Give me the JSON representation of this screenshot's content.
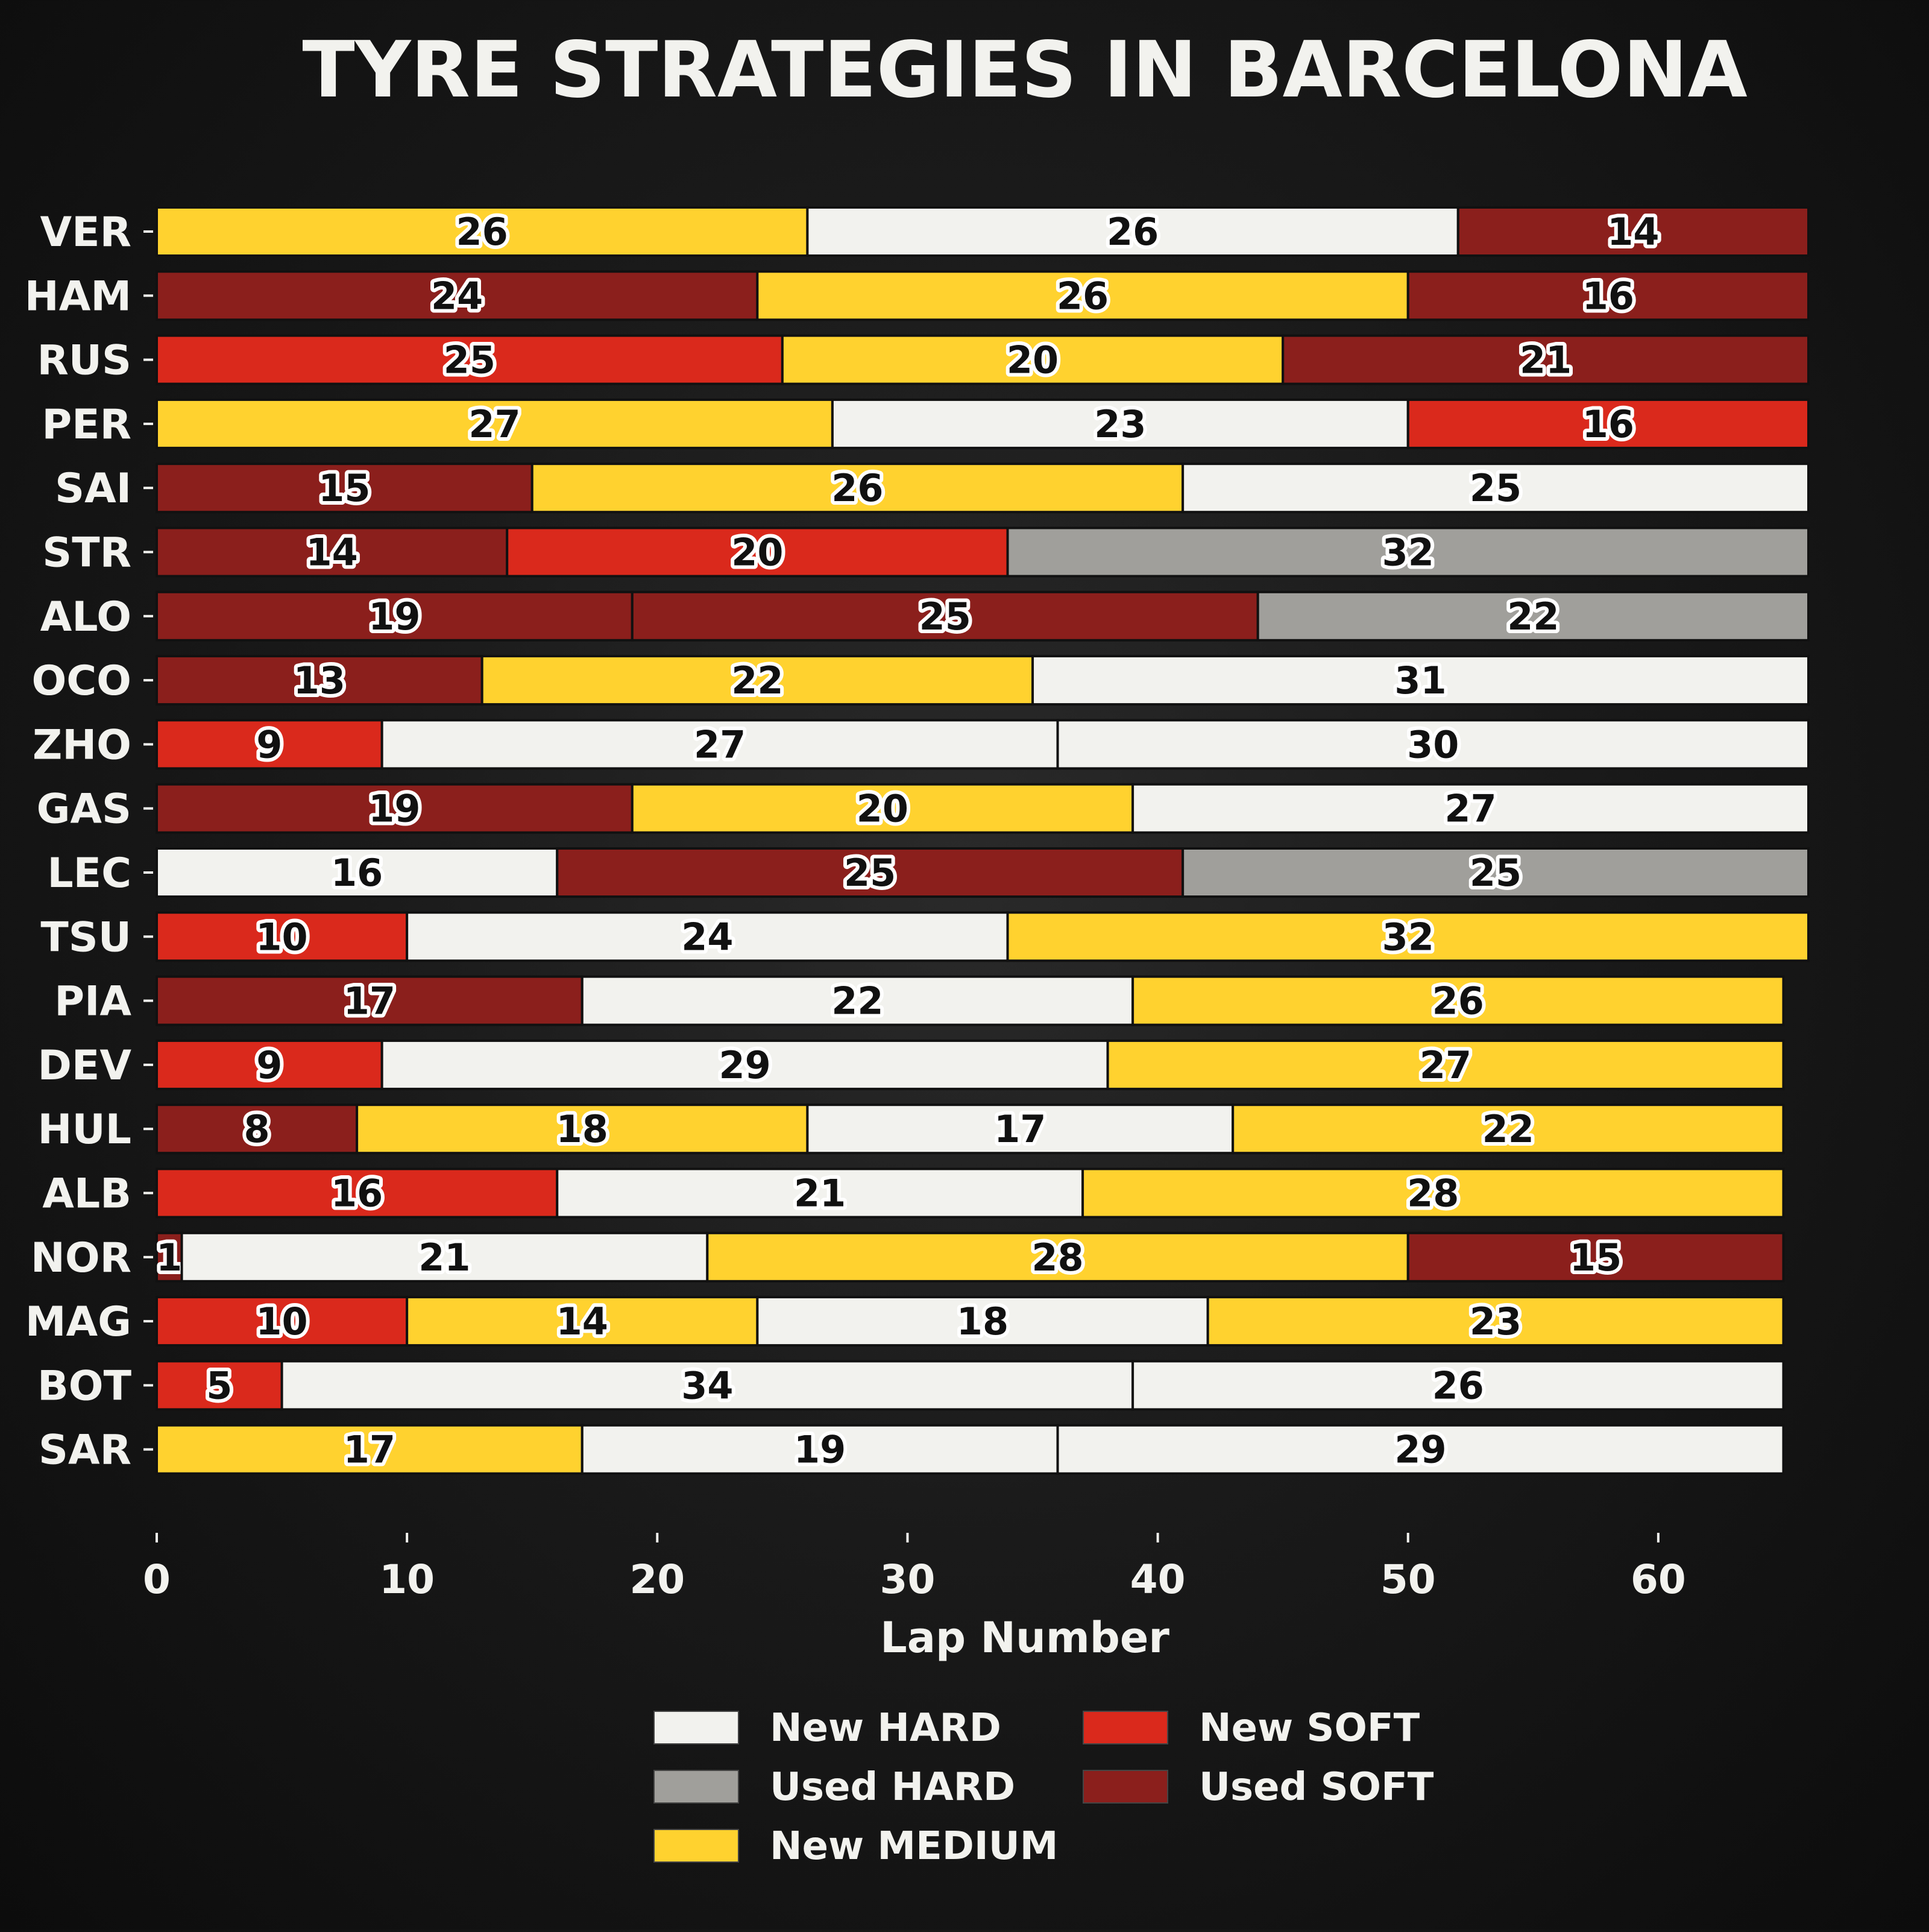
{
  "chart_data": {
    "type": "bar",
    "orientation": "horizontal-stacked",
    "title": "TYRE STRATEGIES IN BARCELONA",
    "xlabel": "Lap Number",
    "ylabel": "",
    "xlim": [
      0,
      66
    ],
    "xticks": [
      0,
      10,
      20,
      30,
      40,
      50,
      60
    ],
    "grid": false,
    "legend_placement": "bottom",
    "compounds": {
      "new_hard": {
        "label": "New HARD",
        "color": "#f2f2ee"
      },
      "used_hard": {
        "label": "Used HARD",
        "color": "#a09f9b"
      },
      "new_medium": {
        "label": "New MEDIUM",
        "color": "#ffd22f"
      },
      "new_soft": {
        "label": "New SOFT",
        "color": "#da291c"
      },
      "used_soft": {
        "label": "Used SOFT",
        "color": "#8b1f1c"
      }
    },
    "legend_order": [
      "new_hard",
      "used_hard",
      "new_medium",
      "new_soft",
      "used_soft"
    ],
    "drivers": [
      {
        "driver": "VER",
        "stints": [
          {
            "compound": "new_medium",
            "laps": 26
          },
          {
            "compound": "new_hard",
            "laps": 26
          },
          {
            "compound": "used_soft",
            "laps": 14
          }
        ]
      },
      {
        "driver": "HAM",
        "stints": [
          {
            "compound": "used_soft",
            "laps": 24
          },
          {
            "compound": "new_medium",
            "laps": 26
          },
          {
            "compound": "used_soft",
            "laps": 16
          }
        ]
      },
      {
        "driver": "RUS",
        "stints": [
          {
            "compound": "new_soft",
            "laps": 25
          },
          {
            "compound": "new_medium",
            "laps": 20
          },
          {
            "compound": "used_soft",
            "laps": 21
          }
        ]
      },
      {
        "driver": "PER",
        "stints": [
          {
            "compound": "new_medium",
            "laps": 27
          },
          {
            "compound": "new_hard",
            "laps": 23
          },
          {
            "compound": "new_soft",
            "laps": 16
          }
        ]
      },
      {
        "driver": "SAI",
        "stints": [
          {
            "compound": "used_soft",
            "laps": 15
          },
          {
            "compound": "new_medium",
            "laps": 26
          },
          {
            "compound": "new_hard",
            "laps": 25
          }
        ]
      },
      {
        "driver": "STR",
        "stints": [
          {
            "compound": "used_soft",
            "laps": 14
          },
          {
            "compound": "new_soft",
            "laps": 20
          },
          {
            "compound": "used_hard",
            "laps": 32
          }
        ]
      },
      {
        "driver": "ALO",
        "stints": [
          {
            "compound": "used_soft",
            "laps": 19
          },
          {
            "compound": "used_soft",
            "laps": 25
          },
          {
            "compound": "used_hard",
            "laps": 22
          }
        ]
      },
      {
        "driver": "OCO",
        "stints": [
          {
            "compound": "used_soft",
            "laps": 13
          },
          {
            "compound": "new_medium",
            "laps": 22
          },
          {
            "compound": "new_hard",
            "laps": 31
          }
        ]
      },
      {
        "driver": "ZHO",
        "stints": [
          {
            "compound": "new_soft",
            "laps": 9
          },
          {
            "compound": "new_hard",
            "laps": 27
          },
          {
            "compound": "new_hard",
            "laps": 30
          }
        ]
      },
      {
        "driver": "GAS",
        "stints": [
          {
            "compound": "used_soft",
            "laps": 19
          },
          {
            "compound": "new_medium",
            "laps": 20
          },
          {
            "compound": "new_hard",
            "laps": 27
          }
        ]
      },
      {
        "driver": "LEC",
        "stints": [
          {
            "compound": "new_hard",
            "laps": 16
          },
          {
            "compound": "used_soft",
            "laps": 25
          },
          {
            "compound": "used_hard",
            "laps": 25
          }
        ]
      },
      {
        "driver": "TSU",
        "stints": [
          {
            "compound": "new_soft",
            "laps": 10
          },
          {
            "compound": "new_hard",
            "laps": 24
          },
          {
            "compound": "new_medium",
            "laps": 32
          }
        ]
      },
      {
        "driver": "PIA",
        "stints": [
          {
            "compound": "used_soft",
            "laps": 17
          },
          {
            "compound": "new_hard",
            "laps": 22
          },
          {
            "compound": "new_medium",
            "laps": 26
          }
        ]
      },
      {
        "driver": "DEV",
        "stints": [
          {
            "compound": "new_soft",
            "laps": 9
          },
          {
            "compound": "new_hard",
            "laps": 29
          },
          {
            "compound": "new_medium",
            "laps": 27
          }
        ]
      },
      {
        "driver": "HUL",
        "stints": [
          {
            "compound": "used_soft",
            "laps": 8
          },
          {
            "compound": "new_medium",
            "laps": 18
          },
          {
            "compound": "new_hard",
            "laps": 17
          },
          {
            "compound": "new_medium",
            "laps": 22
          }
        ]
      },
      {
        "driver": "ALB",
        "stints": [
          {
            "compound": "new_soft",
            "laps": 16
          },
          {
            "compound": "new_hard",
            "laps": 21
          },
          {
            "compound": "new_medium",
            "laps": 28
          }
        ]
      },
      {
        "driver": "NOR",
        "stints": [
          {
            "compound": "used_soft",
            "laps": 1
          },
          {
            "compound": "new_hard",
            "laps": 21
          },
          {
            "compound": "new_medium",
            "laps": 28
          },
          {
            "compound": "used_soft",
            "laps": 15
          }
        ]
      },
      {
        "driver": "MAG",
        "stints": [
          {
            "compound": "new_soft",
            "laps": 10
          },
          {
            "compound": "new_medium",
            "laps": 14
          },
          {
            "compound": "new_hard",
            "laps": 18
          },
          {
            "compound": "new_medium",
            "laps": 23
          }
        ]
      },
      {
        "driver": "BOT",
        "stints": [
          {
            "compound": "new_soft",
            "laps": 5
          },
          {
            "compound": "new_hard",
            "laps": 34
          },
          {
            "compound": "new_hard",
            "laps": 26
          }
        ]
      },
      {
        "driver": "SAR",
        "stints": [
          {
            "compound": "new_medium",
            "laps": 17
          },
          {
            "compound": "new_hard",
            "laps": 19
          },
          {
            "compound": "new_hard",
            "laps": 29
          }
        ]
      }
    ]
  }
}
